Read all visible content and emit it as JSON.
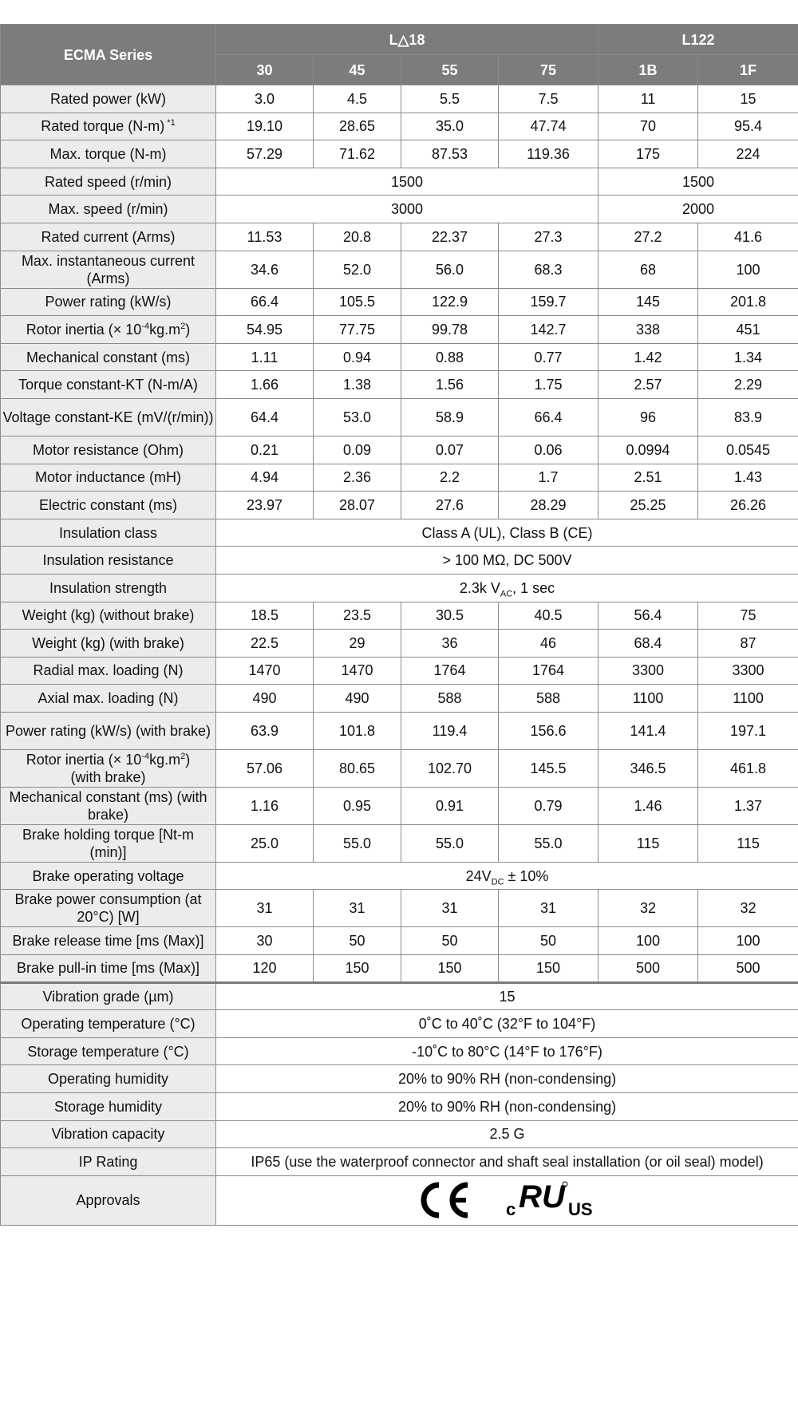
{
  "header": {
    "series_label": "ECMA Series",
    "groups": [
      "L△18",
      "L122"
    ],
    "models": [
      "30",
      "45",
      "55",
      "75",
      "1B",
      "1F"
    ]
  },
  "rows": [
    {
      "label": "Rated power (kW)",
      "values": [
        "3.0",
        "4.5",
        "5.5",
        "7.5",
        "11",
        "15"
      ]
    },
    {
      "label": "Rated torque (N-m)",
      "label_sup": " *1",
      "values": [
        "19.10",
        "28.65",
        "35.0",
        "47.74",
        "70",
        "95.4"
      ]
    },
    {
      "label": "Max. torque (N-m)",
      "values": [
        "57.29",
        "71.62",
        "87.53",
        "119.36",
        "175",
        "224"
      ]
    },
    {
      "label": "Rated speed (r/min)",
      "group_values": [
        "1500",
        "1500"
      ]
    },
    {
      "label": "Max. speed (r/min)",
      "group_values": [
        "3000",
        "2000"
      ]
    },
    {
      "label": "Rated current (Arms)",
      "values": [
        "11.53",
        "20.8",
        "22.37",
        "27.3",
        "27.2",
        "41.6"
      ]
    },
    {
      "label": "Max. instantaneous current (Arms)",
      "tall": true,
      "values": [
        "34.6",
        "52.0",
        "56.0",
        "68.3",
        "68",
        "100"
      ]
    },
    {
      "label": "Power rating (kW/s)",
      "values": [
        "66.4",
        "105.5",
        "122.9",
        "159.7",
        "145",
        "201.8"
      ]
    },
    {
      "label_html": "rotor",
      "label": "Rotor inertia (× 10-4kg.m2)",
      "values": [
        "54.95",
        "77.75",
        "99.78",
        "142.7",
        "338",
        "451"
      ]
    },
    {
      "label": "Mechanical constant (ms)",
      "values": [
        "1.11",
        "0.94",
        "0.88",
        "0.77",
        "1.42",
        "1.34"
      ]
    },
    {
      "label": "Torque constant-KT (N-m/A)",
      "values": [
        "1.66",
        "1.38",
        "1.56",
        "1.75",
        "2.57",
        "2.29"
      ]
    },
    {
      "label": "Voltage constant-KE (mV/(r/min))",
      "tall": true,
      "values": [
        "64.4",
        "53.0",
        "58.9",
        "66.4",
        "96",
        "83.9"
      ]
    },
    {
      "label": "Motor resistance (Ohm)",
      "values": [
        "0.21",
        "0.09",
        "0.07",
        "0.06",
        "0.0994",
        "0.0545"
      ]
    },
    {
      "label": "Motor inductance (mH)",
      "values": [
        "4.94",
        "2.36",
        "2.2",
        "1.7",
        "2.51",
        "1.43"
      ]
    },
    {
      "label": "Electric constant (ms)",
      "values": [
        "23.97",
        "28.07",
        "27.6",
        "28.29",
        "25.25",
        "26.26"
      ]
    },
    {
      "label": "Insulation class",
      "span_value": "Class A (UL), Class B (CE)"
    },
    {
      "label": "Insulation resistance",
      "span_value": "> 100 MΩ, DC 500V"
    },
    {
      "label": "Insulation strength",
      "span_value": "2.3k VAC, 1 sec"
    },
    {
      "label": "Weight (kg) (without brake)",
      "values": [
        "18.5",
        "23.5",
        "30.5",
        "40.5",
        "56.4",
        "75"
      ]
    },
    {
      "label": "Weight (kg) (with brake)",
      "values": [
        "22.5",
        "29",
        "36",
        "46",
        "68.4",
        "87"
      ]
    },
    {
      "label": "Radial max. loading (N)",
      "values": [
        "1470",
        "1470",
        "1764",
        "1764",
        "3300",
        "3300"
      ]
    },
    {
      "label": "Axial max. loading (N)",
      "values": [
        "490",
        "490",
        "588",
        "588",
        "1100",
        "1100"
      ]
    },
    {
      "label": "Power rating (kW/s) (with brake)",
      "tall": true,
      "values": [
        "63.9",
        "101.8",
        "119.4",
        "156.6",
        "141.4",
        "197.1"
      ]
    },
    {
      "label_html": "rotor2",
      "label": "Rotor inertia (× 10-4kg.m2) (with brake)",
      "tall": true,
      "values": [
        "57.06",
        "80.65",
        "102.70",
        "145.5",
        "346.5",
        "461.8"
      ]
    },
    {
      "label": "Mechanical constant (ms) (with brake)",
      "tall": true,
      "values": [
        "1.16",
        "0.95",
        "0.91",
        "0.79",
        "1.46",
        "1.37"
      ]
    },
    {
      "label": "Brake holding torque [Nt-m (min)]",
      "tall": true,
      "values": [
        "25.0",
        "55.0",
        "55.0",
        "55.0",
        "115",
        "115"
      ]
    },
    {
      "label": "Brake operating voltage",
      "span_value": "24VDC ± 10%"
    },
    {
      "label": "Brake power consumption (at 20°C) [W]",
      "tall": true,
      "values": [
        "31",
        "31",
        "31",
        "31",
        "32",
        "32"
      ]
    },
    {
      "label": "Brake release time [ms (Max)]",
      "values": [
        "30",
        "50",
        "50",
        "50",
        "100",
        "100"
      ]
    },
    {
      "label": "Brake pull-in time [ms (Max)]",
      "values": [
        "120",
        "150",
        "150",
        "150",
        "500",
        "500"
      ]
    },
    {
      "label": "Vibration grade (µm)",
      "span_value": "15",
      "sep": true
    },
    {
      "label": "Operating temperature (°C)",
      "span_value": "0˚C to 40˚C (32°F to 104°F)"
    },
    {
      "label": "Storage temperature (°C)",
      "span_value": "-10˚C to 80°C (14°F to 176°F)"
    },
    {
      "label": "Operating humidity",
      "span_value": "20% to 90% RH (non-condensing)"
    },
    {
      "label": "Storage humidity",
      "span_value": "20% to 90% RH (non-condensing)"
    },
    {
      "label": "Vibration capacity",
      "span_value": "2.5 G"
    },
    {
      "label": "IP Rating",
      "span_value": "IP65 (use the waterproof connector and shaft seal installation (or oil seal) model)"
    },
    {
      "label": "Approvals",
      "approvals": [
        "ce-mark-icon",
        "cul-us-listed-mark-icon"
      ],
      "approval_marks": [
        "CE",
        "c",
        "RU",
        "US"
      ]
    }
  ]
}
